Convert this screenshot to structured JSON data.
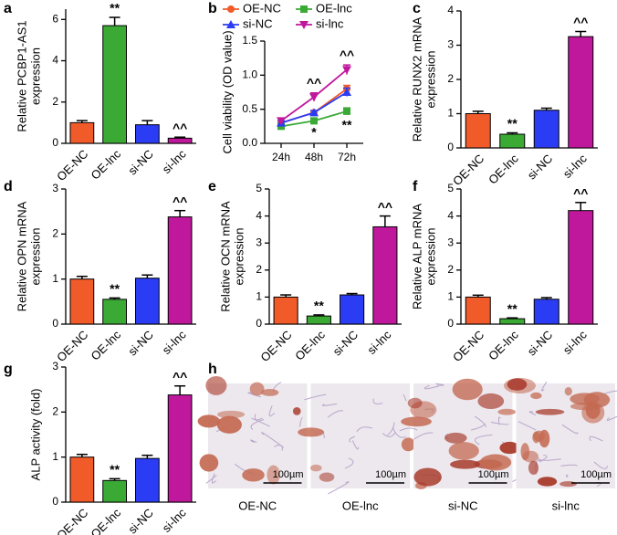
{
  "chart_data": [
    {
      "type": "bar",
      "panel": "a",
      "ylabel": [
        "Relative PCBP1-AS1",
        "expression"
      ],
      "categories": [
        "OE-NC",
        "OE-lnc",
        "si-NC",
        "si-lnc"
      ],
      "colors": [
        "#f15a29",
        "#3aaa35",
        "#2b3cf5",
        "#c0189d"
      ],
      "values": [
        1.0,
        5.7,
        0.9,
        0.25
      ],
      "errors": [
        0.1,
        0.4,
        0.2,
        0.05
      ],
      "annotations": [
        null,
        "**",
        null,
        "^^"
      ],
      "ylim": [
        0,
        6.5
      ],
      "yticks": [
        0,
        2,
        4,
        6
      ]
    },
    {
      "type": "line",
      "panel": "b",
      "ylabel": [
        "Cell viability (OD value)"
      ],
      "categories": [
        "24h",
        "48h",
        "72h"
      ],
      "series": [
        {
          "name": "OE-NC",
          "color": "#f15a29",
          "values": [
            0.3,
            0.45,
            0.8
          ],
          "errors": [
            0.03,
            0.03,
            0.05
          ],
          "annotations": [
            null,
            null,
            null
          ]
        },
        {
          "name": "OE-lnc",
          "color": "#3aaa35",
          "values": [
            0.25,
            0.33,
            0.47
          ],
          "errors": [
            0.02,
            0.02,
            0.05
          ],
          "annotations": [
            null,
            "*",
            "**"
          ]
        },
        {
          "name": "si-NC",
          "color": "#2b3cf5",
          "values": [
            0.3,
            0.45,
            0.75
          ],
          "errors": [
            0.03,
            0.03,
            0.06
          ],
          "annotations": [
            null,
            null,
            null
          ]
        },
        {
          "name": "si-lnc",
          "color": "#c0189d",
          "values": [
            0.33,
            0.68,
            1.08
          ],
          "errors": [
            0.04,
            0.06,
            0.07
          ],
          "annotations": [
            null,
            "^^",
            "^^"
          ]
        }
      ],
      "ylim": [
        0,
        1.5
      ],
      "yticks": [
        {
          "value": 0,
          "label": "0.0"
        },
        {
          "value": 0.5,
          "label": "0.5"
        },
        {
          "value": 1,
          "label": "1.0"
        },
        {
          "value": 1.5,
          "label": "1.5"
        }
      ]
    },
    {
      "type": "bar",
      "panel": "c",
      "ylabel": [
        "Relative RUNX2 mRNA",
        "expression"
      ],
      "categories": [
        "OE-NC",
        "OE-lnc",
        "si-NC",
        "si-lnc"
      ],
      "colors": [
        "#f15a29",
        "#3aaa35",
        "#2b3cf5",
        "#c0189d"
      ],
      "values": [
        1.0,
        0.4,
        1.1,
        3.25
      ],
      "errors": [
        0.07,
        0.04,
        0.06,
        0.15
      ],
      "annotations": [
        null,
        "**",
        null,
        "^^"
      ],
      "ylim": [
        0,
        4
      ],
      "yticks": [
        0,
        1,
        2,
        3,
        4
      ]
    },
    {
      "type": "bar",
      "panel": "d",
      "ylabel": [
        "Relative OPN mRNA",
        "expression"
      ],
      "categories": [
        "OE-NC",
        "OE-lnc",
        "si-NC",
        "si-lnc"
      ],
      "colors": [
        "#f15a29",
        "#3aaa35",
        "#2b3cf5",
        "#c0189d"
      ],
      "values": [
        1.0,
        0.55,
        1.02,
        2.38
      ],
      "errors": [
        0.06,
        0.03,
        0.07,
        0.14
      ],
      "annotations": [
        null,
        "**",
        null,
        "^^"
      ],
      "ylim": [
        0,
        3
      ],
      "yticks": [
        0,
        1,
        2,
        3
      ]
    },
    {
      "type": "bar",
      "panel": "e",
      "ylabel": [
        "Relative OCN mRNA",
        "expression"
      ],
      "categories": [
        "OE-NC",
        "OE-lnc",
        "si-NC",
        "si-lnc"
      ],
      "colors": [
        "#f15a29",
        "#3aaa35",
        "#2b3cf5",
        "#c0189d"
      ],
      "values": [
        1.0,
        0.3,
        1.08,
        3.6
      ],
      "errors": [
        0.08,
        0.04,
        0.05,
        0.4
      ],
      "annotations": [
        null,
        "**",
        null,
        "^^"
      ],
      "ylim": [
        0,
        5
      ],
      "yticks": [
        0,
        1,
        2,
        3,
        4,
        5
      ]
    },
    {
      "type": "bar",
      "panel": "f",
      "ylabel": [
        "Relative ALP mRNA",
        "expression"
      ],
      "categories": [
        "OE-NC",
        "OE-lnc",
        "si-NC",
        "si-lnc"
      ],
      "colors": [
        "#f15a29",
        "#3aaa35",
        "#2b3cf5",
        "#c0189d"
      ],
      "values": [
        1.0,
        0.2,
        0.92,
        4.2
      ],
      "errors": [
        0.07,
        0.03,
        0.06,
        0.3
      ],
      "annotations": [
        null,
        "**",
        null,
        "^^"
      ],
      "ylim": [
        0,
        5
      ],
      "yticks": [
        0,
        1,
        2,
        3,
        4,
        5
      ]
    },
    {
      "type": "bar",
      "panel": "g",
      "ylabel": [
        "ALP activity (fold)"
      ],
      "categories": [
        "OE-NC",
        "OE-lnc",
        "si-NC",
        "si-lnc"
      ],
      "colors": [
        "#f15a29",
        "#3aaa35",
        "#2b3cf5",
        "#c0189d"
      ],
      "values": [
        1.0,
        0.48,
        0.97,
        2.38
      ],
      "errors": [
        0.06,
        0.04,
        0.07,
        0.2
      ],
      "annotations": [
        null,
        "**",
        null,
        "^^"
      ],
      "ylim": [
        0,
        3
      ],
      "yticks": [
        0,
        1,
        2,
        3
      ]
    },
    {
      "type": "micrograph",
      "panel": "h",
      "images": [
        {
          "label": "OE-NC",
          "scale_bar": "100µm"
        },
        {
          "label": "OE-lnc",
          "scale_bar": "100µm"
        },
        {
          "label": "si-NC",
          "scale_bar": "100µm"
        },
        {
          "label": "si-lnc",
          "scale_bar": "100µm"
        }
      ]
    }
  ]
}
